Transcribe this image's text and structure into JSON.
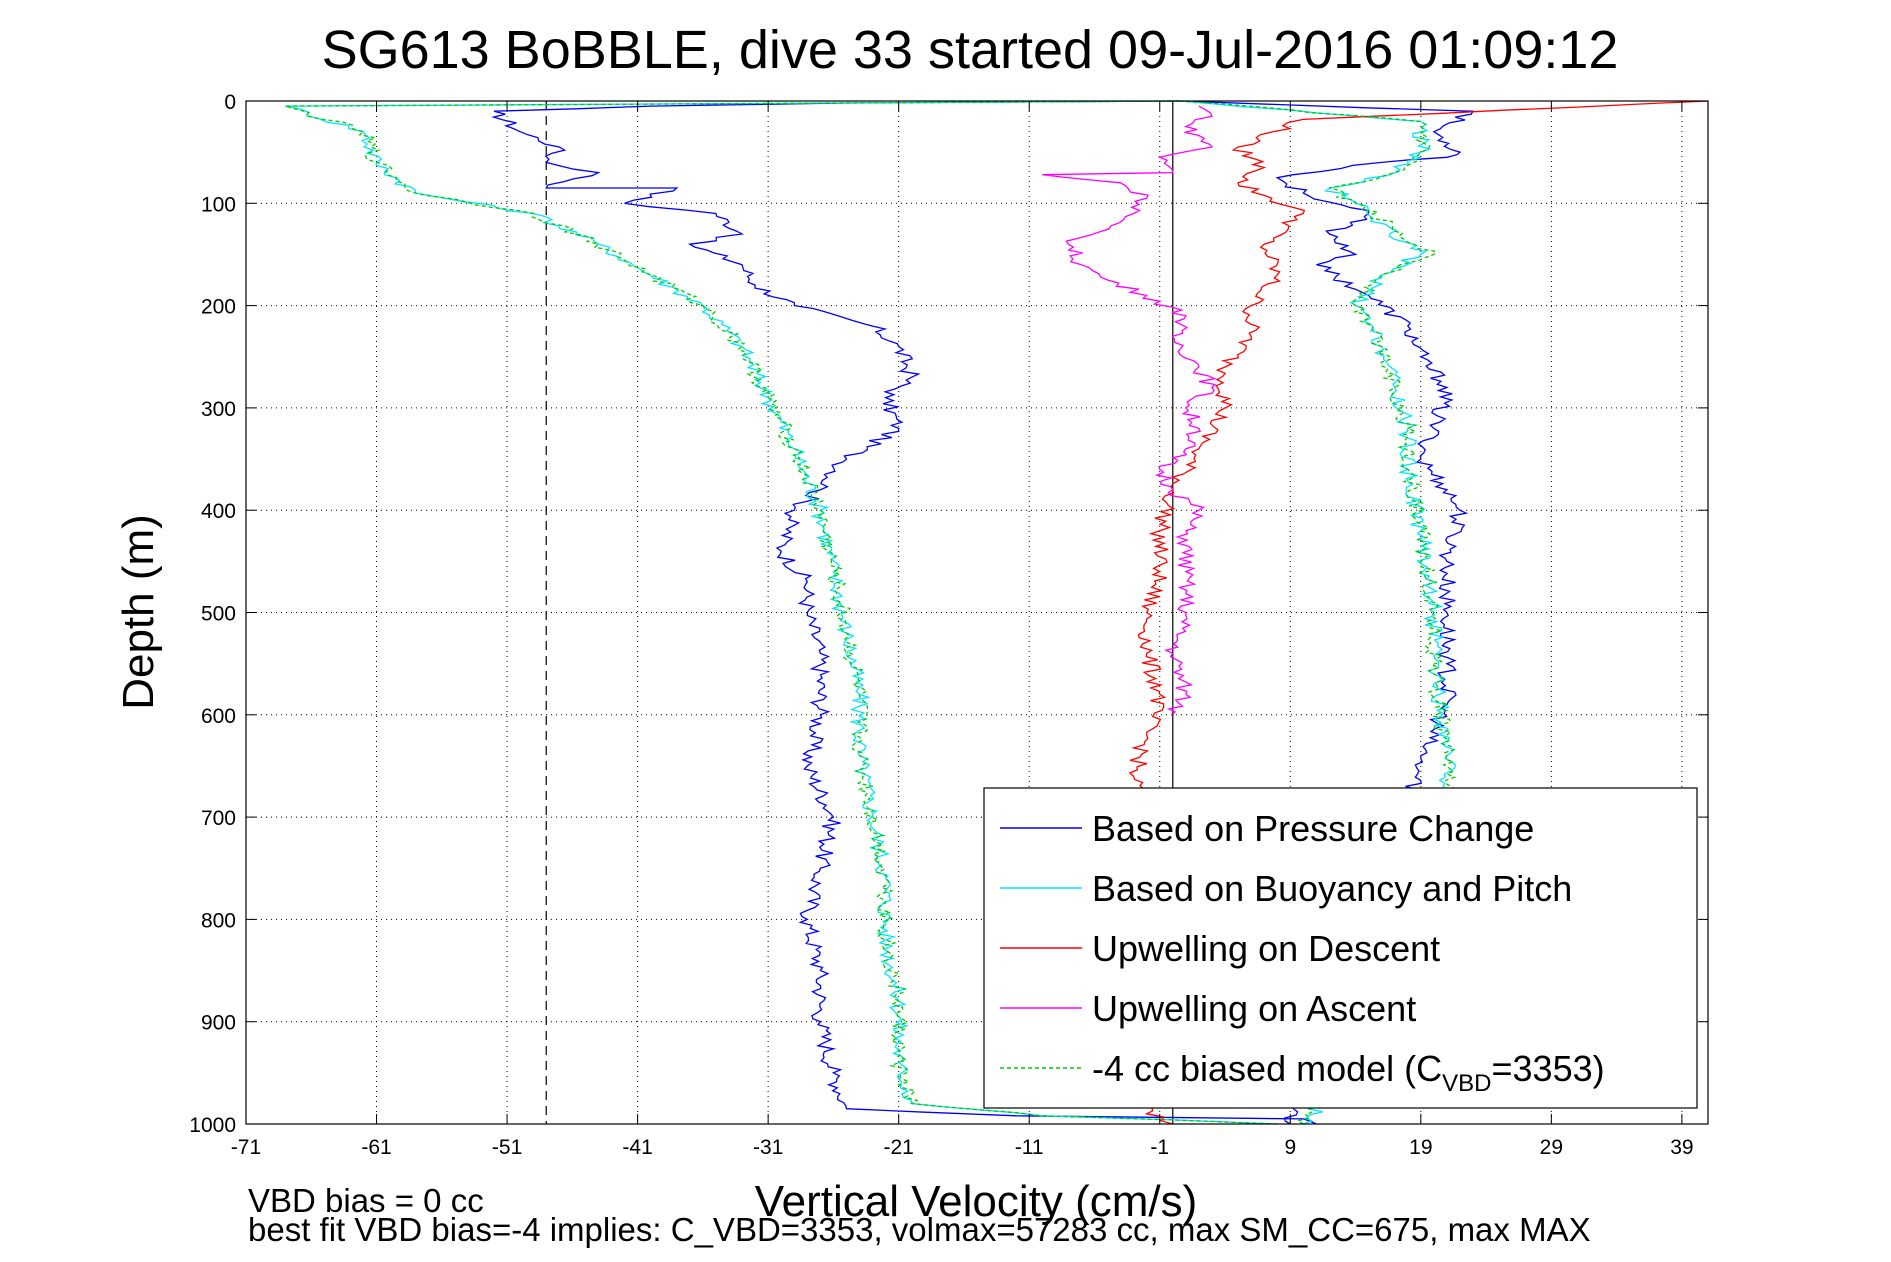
{
  "chart_data": {
    "type": "line",
    "title": "SG613 BoBBLE, dive 33 started 09-Jul-2016 01:09:12",
    "xlabel": "Vertical Velocity (cm/s)",
    "ylabel": "Depth (m)",
    "xlim": [
      -71,
      41
    ],
    "ylim": [
      0,
      1000
    ],
    "y_reversed": true,
    "grid": true,
    "legend_position": "bottom-right",
    "x_ticks": [
      -71,
      -61,
      -51,
      -41,
      -31,
      -21,
      -11,
      -1,
      9,
      19,
      29,
      39
    ],
    "x_tick_labels": [
      "-71",
      "-61",
      "-51",
      "-41",
      "-31",
      "-21",
      "-11",
      "-1",
      "9",
      "19",
      "29",
      "39"
    ],
    "y_ticks": [
      0,
      100,
      200,
      300,
      400,
      500,
      600,
      700,
      800,
      900,
      1000
    ],
    "y_tick_labels": [
      "0",
      "100",
      "200",
      "300",
      "400",
      "500",
      "600",
      "700",
      "800",
      "900",
      "1000"
    ],
    "reference_lines": [
      {
        "x": 0,
        "style": "solid"
      },
      {
        "x": -48,
        "style": "dashed"
      }
    ],
    "series": [
      {
        "name": "Based on Pressure Change",
        "color": "#0000ff",
        "style": "solid",
        "points": [
          [
            0.5,
            0
          ],
          [
            -25,
            2
          ],
          [
            -40,
            5
          ],
          [
            -52,
            10
          ],
          [
            -50,
            30
          ],
          [
            -47,
            45
          ],
          [
            -48,
            60
          ],
          [
            -44,
            70
          ],
          [
            -48,
            85
          ],
          [
            -38,
            85
          ],
          [
            -42,
            100
          ],
          [
            -35,
            110
          ],
          [
            -33,
            130
          ],
          [
            -37,
            140
          ],
          [
            -33,
            160
          ],
          [
            -32,
            180
          ],
          [
            -29,
            200
          ],
          [
            -23,
            220
          ],
          [
            -21,
            240
          ],
          [
            -20,
            270
          ],
          [
            -22,
            290
          ],
          [
            -21,
            320
          ],
          [
            -25,
            350
          ],
          [
            -27,
            380
          ],
          [
            -29,
            400
          ],
          [
            -30,
            440
          ],
          [
            -28,
            470
          ],
          [
            -28,
            500
          ],
          [
            -27,
            540
          ],
          [
            -27,
            600
          ],
          [
            -28,
            650
          ],
          [
            -26,
            700
          ],
          [
            -27,
            750
          ],
          [
            -28,
            800
          ],
          [
            -27,
            850
          ],
          [
            -27,
            900
          ],
          [
            -26,
            950
          ],
          [
            -25,
            985
          ],
          [
            -12,
            992
          ],
          [
            10,
            995
          ],
          [
            11,
            1000
          ]
        ],
        "ascent_points": [
          [
            0.5,
            0
          ],
          [
            23,
            10
          ],
          [
            20,
            30
          ],
          [
            22,
            50
          ],
          [
            21,
            55
          ],
          [
            16,
            60
          ],
          [
            8,
            75
          ],
          [
            10,
            90
          ],
          [
            15,
            110
          ],
          [
            12,
            130
          ],
          [
            14,
            150
          ],
          [
            11,
            160
          ],
          [
            15,
            190
          ],
          [
            18,
            220
          ],
          [
            19,
            250
          ],
          [
            21,
            280
          ],
          [
            20,
            320
          ],
          [
            19,
            350
          ],
          [
            21,
            380
          ],
          [
            22,
            400
          ],
          [
            21,
            450
          ],
          [
            21,
            500
          ],
          [
            21,
            550
          ],
          [
            21,
            590
          ],
          [
            19,
            640
          ],
          [
            18,
            700
          ],
          [
            17,
            750
          ],
          [
            15,
            800
          ],
          [
            14,
            850
          ],
          [
            12,
            900
          ],
          [
            10,
            950
          ],
          [
            9,
            1000
          ]
        ]
      },
      {
        "name": "Based on Buoyancy and Pitch",
        "color": "#00e5ff",
        "style": "solid",
        "points": [
          [
            0.5,
            0
          ],
          [
            -68,
            5
          ],
          [
            -62,
            30
          ],
          [
            -61,
            60
          ],
          [
            -58,
            90
          ],
          [
            -49,
            110
          ],
          [
            -44,
            140
          ],
          [
            -40,
            170
          ],
          [
            -36,
            200
          ],
          [
            -33,
            240
          ],
          [
            -31,
            290
          ],
          [
            -29,
            340
          ],
          [
            -27,
            400
          ],
          [
            -26,
            460
          ],
          [
            -25,
            520
          ],
          [
            -24,
            580
          ],
          [
            -24,
            640
          ],
          [
            -23,
            700
          ],
          [
            -22,
            760
          ],
          [
            -22,
            820
          ],
          [
            -21,
            880
          ],
          [
            -21,
            940
          ],
          [
            -20,
            980
          ],
          [
            -10,
            992
          ],
          [
            0,
            996
          ],
          [
            8,
            1000
          ]
        ],
        "ascent_points": [
          [
            0.5,
            0
          ],
          [
            19,
            20
          ],
          [
            19,
            50
          ],
          [
            17,
            70
          ],
          [
            12,
            85
          ],
          [
            14,
            100
          ],
          [
            19,
            150
          ],
          [
            16,
            170
          ],
          [
            14,
            200
          ],
          [
            16,
            240
          ],
          [
            17,
            280
          ],
          [
            18,
            320
          ],
          [
            18,
            360
          ],
          [
            19,
            420
          ],
          [
            20,
            500
          ],
          [
            20,
            560
          ],
          [
            21,
            640
          ],
          [
            21,
            700
          ],
          [
            20,
            760
          ],
          [
            19,
            820
          ],
          [
            17,
            880
          ],
          [
            14,
            940
          ],
          [
            10,
            1000
          ]
        ]
      },
      {
        "name": "Upwelling on Descent",
        "color": "#ff0000",
        "style": "solid",
        "points": [
          [
            41,
            0
          ],
          [
            10,
            18
          ],
          [
            5,
            45
          ],
          [
            7,
            65
          ],
          [
            5,
            80
          ],
          [
            10,
            110
          ],
          [
            7,
            140
          ],
          [
            8,
            170
          ],
          [
            6,
            200
          ],
          [
            6,
            230
          ],
          [
            4,
            260
          ],
          [
            4,
            300
          ],
          [
            2,
            340
          ],
          [
            0,
            380
          ],
          [
            -1,
            420
          ],
          [
            -1,
            460
          ],
          [
            -2,
            500
          ],
          [
            -2,
            540
          ],
          [
            -1,
            580
          ],
          [
            -2,
            620
          ],
          [
            -3,
            660
          ],
          [
            -2,
            700
          ],
          [
            -2,
            760
          ],
          [
            -3,
            820
          ],
          [
            -2,
            880
          ],
          [
            -3,
            940
          ],
          [
            -2,
            990
          ],
          [
            0,
            1000
          ]
        ]
      },
      {
        "name": "Upwelling on Ascent",
        "color": "#ff00ff",
        "style": "solid",
        "points": [
          [
            2,
            5
          ],
          [
            3,
            15
          ],
          [
            1,
            25
          ],
          [
            3,
            45
          ],
          [
            -1,
            55
          ],
          [
            0,
            70
          ],
          [
            -10,
            72
          ],
          [
            -4,
            80
          ],
          [
            -2,
            95
          ],
          [
            -3,
            110
          ],
          [
            -8,
            140
          ],
          [
            -7,
            160
          ],
          [
            -5,
            175
          ],
          [
            -2,
            190
          ],
          [
            1,
            210
          ],
          [
            0,
            230
          ],
          [
            2,
            260
          ],
          [
            3,
            280
          ],
          [
            1,
            300
          ],
          [
            2,
            320
          ],
          [
            1,
            340
          ],
          [
            -1,
            360
          ],
          [
            0,
            380
          ],
          [
            2,
            400
          ],
          [
            1,
            420
          ],
          [
            1,
            460
          ],
          [
            1,
            500
          ],
          [
            0,
            540
          ],
          [
            1,
            580
          ],
          [
            0,
            600
          ]
        ]
      },
      {
        "name": "-4 cc biased model (C_VBD=3353)",
        "color": "#00cc00",
        "style": "dashed",
        "points": [
          [
            0.5,
            0
          ],
          [
            -68,
            5
          ],
          [
            -62,
            30
          ],
          [
            -61,
            60
          ],
          [
            -58,
            90
          ],
          [
            -49,
            110
          ],
          [
            -44,
            140
          ],
          [
            -40,
            170
          ],
          [
            -36,
            200
          ],
          [
            -33,
            240
          ],
          [
            -31,
            290
          ],
          [
            -29,
            340
          ],
          [
            -27,
            400
          ],
          [
            -26,
            460
          ],
          [
            -25,
            520
          ],
          [
            -24,
            580
          ],
          [
            -24,
            640
          ],
          [
            -23,
            700
          ],
          [
            -22,
            760
          ],
          [
            -22,
            820
          ],
          [
            -21,
            880
          ],
          [
            -21,
            940
          ],
          [
            -20,
            980
          ],
          [
            -10,
            992
          ],
          [
            0,
            996
          ],
          [
            8,
            1000
          ]
        ],
        "ascent_points": [
          [
            0.5,
            0
          ],
          [
            19,
            20
          ],
          [
            19,
            50
          ],
          [
            17,
            70
          ],
          [
            12,
            85
          ],
          [
            14,
            100
          ],
          [
            20,
            150
          ],
          [
            16,
            170
          ],
          [
            14,
            200
          ],
          [
            16,
            240
          ],
          [
            17,
            280
          ],
          [
            18,
            320
          ],
          [
            18,
            360
          ],
          [
            19,
            420
          ],
          [
            20,
            500
          ],
          [
            20,
            560
          ],
          [
            21,
            640
          ],
          [
            21,
            700
          ],
          [
            20,
            760
          ],
          [
            19,
            820
          ],
          [
            17,
            880
          ],
          [
            14,
            940
          ],
          [
            10,
            1000
          ]
        ]
      }
    ],
    "legend": [
      {
        "label": "Based on Pressure Change",
        "color": "#0000ff",
        "style": "solid"
      },
      {
        "label": "Based on Buoyancy and Pitch",
        "color": "#00e5ff",
        "style": "solid"
      },
      {
        "label": "Upwelling on Descent",
        "color": "#ff0000",
        "style": "solid"
      },
      {
        "label": "Upwelling on Ascent",
        "color": "#ff00ff",
        "style": "solid"
      },
      {
        "label_prefix": "-4 cc biased model (C",
        "label_sub": "VBD",
        "label_suffix": "=3353)",
        "color": "#00cc00",
        "style": "dashed"
      }
    ]
  },
  "footer": {
    "line1": "VBD bias = 0 cc",
    "line2": "best fit VBD bias=-4 implies: C_VBD=3353, volmax=57283 cc, max SM_CC=675, max MAX"
  }
}
